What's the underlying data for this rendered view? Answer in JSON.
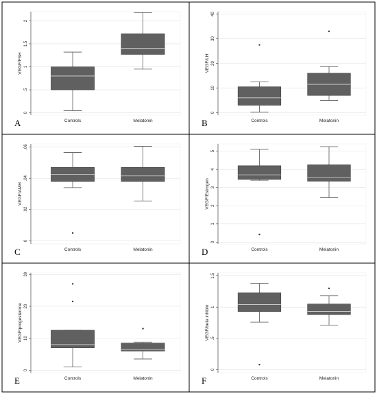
{
  "chart_data": [
    {
      "type": "box",
      "panel_label": "A",
      "ylabel": "VEGF/FSH",
      "categories": [
        "Controls",
        "Melatonin"
      ],
      "ylim": [
        -0.05,
        2.2
      ],
      "yticks": [
        0,
        0.5,
        1,
        1.5,
        2
      ],
      "ytick_labels": [
        "0",
        ".5",
        "1",
        "1.5",
        "2"
      ],
      "boxes": [
        {
          "min": 0.05,
          "q1": 0.5,
          "median": 0.8,
          "q3": 1.0,
          "max": 1.32,
          "outliers": []
        },
        {
          "min": 0.95,
          "q1": 1.27,
          "median": 1.4,
          "q3": 1.72,
          "max": 2.18,
          "outliers": []
        }
      ]
    },
    {
      "type": "box",
      "panel_label": "B",
      "ylabel": "VEGF/LH",
      "categories": [
        "Controls",
        "Melatonin"
      ],
      "ylim": [
        -1,
        41
      ],
      "yticks": [
        0,
        10,
        20,
        30,
        40
      ],
      "ytick_labels": [
        "0",
        "10",
        "20",
        "30",
        "40"
      ],
      "boxes": [
        {
          "min": 0.2,
          "q1": 3,
          "median": 6,
          "q3": 10.5,
          "max": 12.5,
          "outliers": [
            27.5
          ]
        },
        {
          "min": 5,
          "q1": 7,
          "median": 11.5,
          "q3": 16,
          "max": 18.7,
          "outliers": [
            33
          ]
        }
      ]
    },
    {
      "type": "box",
      "panel_label": "C",
      "ylabel": "VEGF/AMH",
      "categories": [
        "Controls",
        "Melatonin"
      ],
      "ylim": [
        -0.002,
        0.062
      ],
      "yticks": [
        0,
        0.02,
        0.04,
        0.06
      ],
      "ytick_labels": [
        "0",
        ".02",
        ".04",
        ".06"
      ],
      "boxes": [
        {
          "min": 0.034,
          "q1": 0.038,
          "median": 0.0425,
          "q3": 0.047,
          "max": 0.0565,
          "outliers": [
            0.005
          ]
        },
        {
          "min": 0.0255,
          "q1": 0.038,
          "median": 0.0415,
          "q3": 0.047,
          "max": 0.0605,
          "outliers": []
        }
      ]
    },
    {
      "type": "box",
      "panel_label": "D",
      "ylabel": "VEGF/Estrogen",
      "categories": [
        "Controls",
        "Melatonin"
      ],
      "ylim": [
        -0.1,
        5.4
      ],
      "yticks": [
        0,
        1,
        2,
        3,
        4,
        5
      ],
      "ytick_labels": [
        "0",
        "1",
        "2",
        "3",
        "4",
        "5"
      ],
      "boxes": [
        {
          "min": 3.4,
          "q1": 3.45,
          "median": 3.7,
          "q3": 4.2,
          "max": 5.1,
          "outliers": [
            0.42
          ]
        },
        {
          "min": 2.45,
          "q1": 3.35,
          "median": 3.55,
          "q3": 4.25,
          "max": 5.25,
          "outliers": []
        }
      ]
    },
    {
      "type": "box",
      "panel_label": "E",
      "ylabel": "VEGF/progesterone",
      "categories": [
        "Controls",
        "Melatonin"
      ],
      "ylim": [
        -0.8,
        30.5
      ],
      "yticks": [
        0,
        10,
        20,
        30
      ],
      "ytick_labels": [
        "0",
        "10",
        "20",
        "30"
      ],
      "boxes": [
        {
          "min": 1,
          "q1": 7,
          "median": 8,
          "q3": 12.5,
          "max": 12.5,
          "outliers": [
            21.5,
            27
          ]
        },
        {
          "min": 3.5,
          "q1": 6,
          "median": 6.5,
          "q3": 8.5,
          "max": 8.8,
          "outliers": [
            13
          ]
        }
      ]
    },
    {
      "type": "box",
      "panel_label": "F",
      "ylabel": "VEGF/beta inhibin",
      "categories": [
        "Controls",
        "Melatonin"
      ],
      "ylim": [
        -0.05,
        1.55
      ],
      "yticks": [
        0,
        0.5,
        1,
        1.5
      ],
      "ytick_labels": [
        "0",
        ".5",
        "1",
        "1.5"
      ],
      "boxes": [
        {
          "min": 0.76,
          "q1": 0.93,
          "median": 1.04,
          "q3": 1.23,
          "max": 1.38,
          "outliers": [
            0.08
          ]
        },
        {
          "min": 0.71,
          "q1": 0.88,
          "median": 0.93,
          "q3": 1.05,
          "max": 1.18,
          "outliers": [
            1.3
          ]
        }
      ]
    }
  ],
  "style": {
    "box_fill": "#606060",
    "line_color": "#555555",
    "median_color": "#d9d9d9",
    "grid_color": "#e2e2e2",
    "border_color": "#000000"
  }
}
